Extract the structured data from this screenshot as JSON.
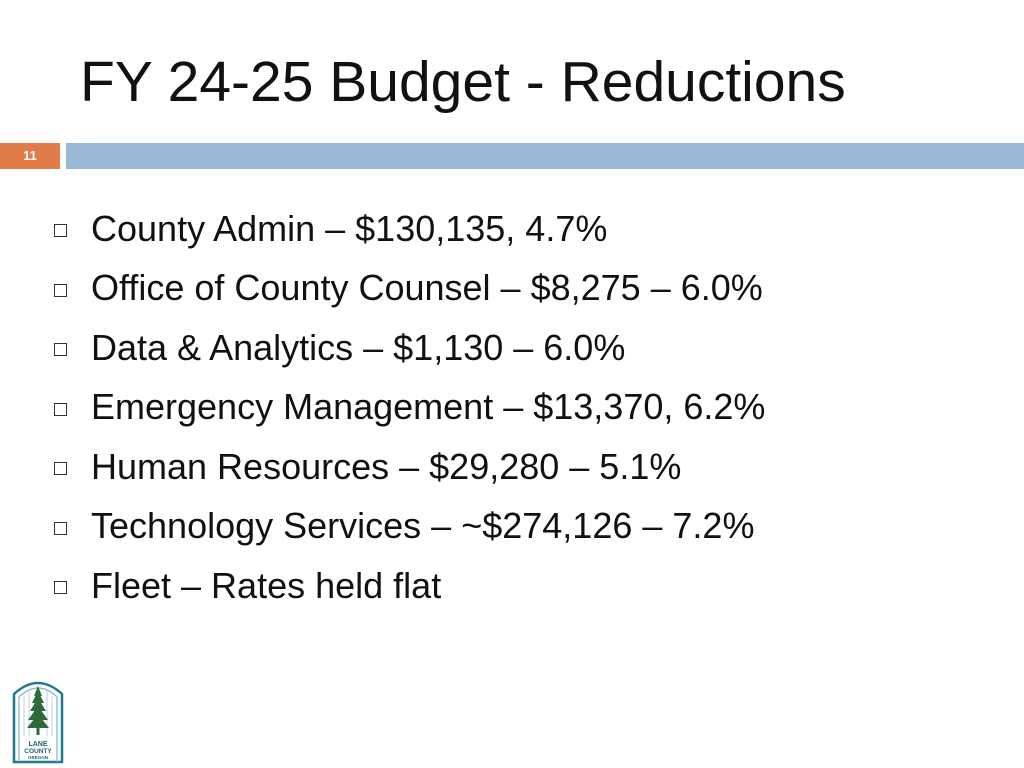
{
  "slide": {
    "title": "FY 24-25 Budget - Reductions",
    "number": "11"
  },
  "bullets": [
    "County Admin – $130,135, 4.7%",
    "Office of County Counsel – $8,275 – 6.0%",
    "Data & Analytics – $1,130 – 6.0%",
    "Emergency Management – $13,370, 6.2%",
    "Human Resources – $29,280 – 5.1%",
    "Technology Services – ~$274,126 – 7.2%",
    "Fleet – Rates held flat"
  ],
  "logo": {
    "line1": "LANE",
    "line2": "COUNTY",
    "line3": "OREGON"
  },
  "colors": {
    "accent_orange": "#e17b4a",
    "rule_blue": "#98b8d6",
    "logo_teal": "#1f7a8c",
    "logo_green": "#2e6b3a"
  }
}
